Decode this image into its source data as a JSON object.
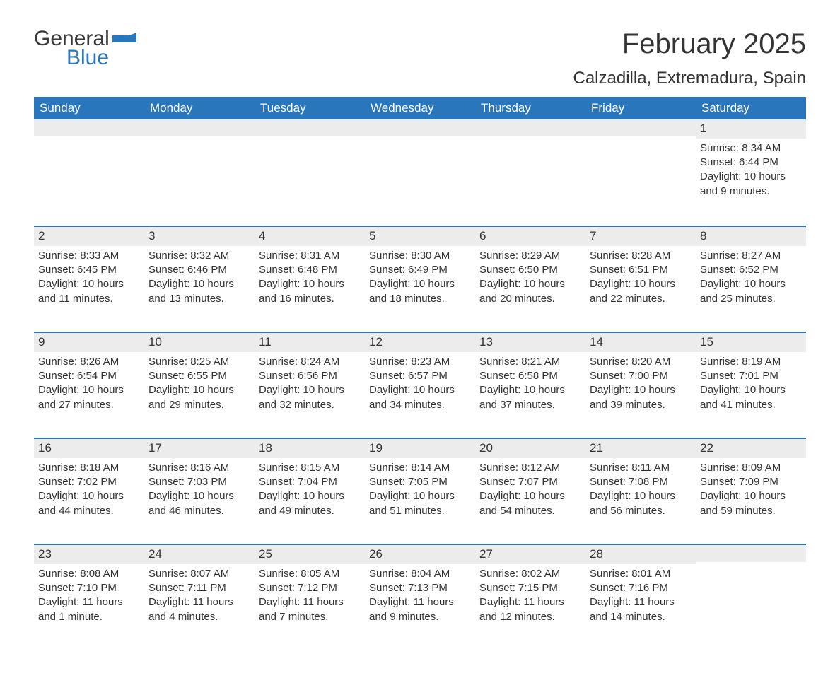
{
  "brand": {
    "word1": "General",
    "word2": "Blue",
    "color_primary": "#2a76bd",
    "color_text": "#3a3a3a"
  },
  "title": "February 2025",
  "location": "Calzadilla, Extremadura, Spain",
  "header_bg": "#2a76bd",
  "header_fg": "#ffffff",
  "daynum_bg": "#ececec",
  "week_border": "#2a76bd",
  "weekdays": [
    "Sunday",
    "Monday",
    "Tuesday",
    "Wednesday",
    "Thursday",
    "Friday",
    "Saturday"
  ],
  "weeks": [
    [
      null,
      null,
      null,
      null,
      null,
      null,
      {
        "n": "1",
        "sunrise": "Sunrise: 8:34 AM",
        "sunset": "Sunset: 6:44 PM",
        "daylight": "Daylight: 10 hours and 9 minutes."
      }
    ],
    [
      {
        "n": "2",
        "sunrise": "Sunrise: 8:33 AM",
        "sunset": "Sunset: 6:45 PM",
        "daylight": "Daylight: 10 hours and 11 minutes."
      },
      {
        "n": "3",
        "sunrise": "Sunrise: 8:32 AM",
        "sunset": "Sunset: 6:46 PM",
        "daylight": "Daylight: 10 hours and 13 minutes."
      },
      {
        "n": "4",
        "sunrise": "Sunrise: 8:31 AM",
        "sunset": "Sunset: 6:48 PM",
        "daylight": "Daylight: 10 hours and 16 minutes."
      },
      {
        "n": "5",
        "sunrise": "Sunrise: 8:30 AM",
        "sunset": "Sunset: 6:49 PM",
        "daylight": "Daylight: 10 hours and 18 minutes."
      },
      {
        "n": "6",
        "sunrise": "Sunrise: 8:29 AM",
        "sunset": "Sunset: 6:50 PM",
        "daylight": "Daylight: 10 hours and 20 minutes."
      },
      {
        "n": "7",
        "sunrise": "Sunrise: 8:28 AM",
        "sunset": "Sunset: 6:51 PM",
        "daylight": "Daylight: 10 hours and 22 minutes."
      },
      {
        "n": "8",
        "sunrise": "Sunrise: 8:27 AM",
        "sunset": "Sunset: 6:52 PM",
        "daylight": "Daylight: 10 hours and 25 minutes."
      }
    ],
    [
      {
        "n": "9",
        "sunrise": "Sunrise: 8:26 AM",
        "sunset": "Sunset: 6:54 PM",
        "daylight": "Daylight: 10 hours and 27 minutes."
      },
      {
        "n": "10",
        "sunrise": "Sunrise: 8:25 AM",
        "sunset": "Sunset: 6:55 PM",
        "daylight": "Daylight: 10 hours and 29 minutes."
      },
      {
        "n": "11",
        "sunrise": "Sunrise: 8:24 AM",
        "sunset": "Sunset: 6:56 PM",
        "daylight": "Daylight: 10 hours and 32 minutes."
      },
      {
        "n": "12",
        "sunrise": "Sunrise: 8:23 AM",
        "sunset": "Sunset: 6:57 PM",
        "daylight": "Daylight: 10 hours and 34 minutes."
      },
      {
        "n": "13",
        "sunrise": "Sunrise: 8:21 AM",
        "sunset": "Sunset: 6:58 PM",
        "daylight": "Daylight: 10 hours and 37 minutes."
      },
      {
        "n": "14",
        "sunrise": "Sunrise: 8:20 AM",
        "sunset": "Sunset: 7:00 PM",
        "daylight": "Daylight: 10 hours and 39 minutes."
      },
      {
        "n": "15",
        "sunrise": "Sunrise: 8:19 AM",
        "sunset": "Sunset: 7:01 PM",
        "daylight": "Daylight: 10 hours and 41 minutes."
      }
    ],
    [
      {
        "n": "16",
        "sunrise": "Sunrise: 8:18 AM",
        "sunset": "Sunset: 7:02 PM",
        "daylight": "Daylight: 10 hours and 44 minutes."
      },
      {
        "n": "17",
        "sunrise": "Sunrise: 8:16 AM",
        "sunset": "Sunset: 7:03 PM",
        "daylight": "Daylight: 10 hours and 46 minutes."
      },
      {
        "n": "18",
        "sunrise": "Sunrise: 8:15 AM",
        "sunset": "Sunset: 7:04 PM",
        "daylight": "Daylight: 10 hours and 49 minutes."
      },
      {
        "n": "19",
        "sunrise": "Sunrise: 8:14 AM",
        "sunset": "Sunset: 7:05 PM",
        "daylight": "Daylight: 10 hours and 51 minutes."
      },
      {
        "n": "20",
        "sunrise": "Sunrise: 8:12 AM",
        "sunset": "Sunset: 7:07 PM",
        "daylight": "Daylight: 10 hours and 54 minutes."
      },
      {
        "n": "21",
        "sunrise": "Sunrise: 8:11 AM",
        "sunset": "Sunset: 7:08 PM",
        "daylight": "Daylight: 10 hours and 56 minutes."
      },
      {
        "n": "22",
        "sunrise": "Sunrise: 8:09 AM",
        "sunset": "Sunset: 7:09 PM",
        "daylight": "Daylight: 10 hours and 59 minutes."
      }
    ],
    [
      {
        "n": "23",
        "sunrise": "Sunrise: 8:08 AM",
        "sunset": "Sunset: 7:10 PM",
        "daylight": "Daylight: 11 hours and 1 minute."
      },
      {
        "n": "24",
        "sunrise": "Sunrise: 8:07 AM",
        "sunset": "Sunset: 7:11 PM",
        "daylight": "Daylight: 11 hours and 4 minutes."
      },
      {
        "n": "25",
        "sunrise": "Sunrise: 8:05 AM",
        "sunset": "Sunset: 7:12 PM",
        "daylight": "Daylight: 11 hours and 7 minutes."
      },
      {
        "n": "26",
        "sunrise": "Sunrise: 8:04 AM",
        "sunset": "Sunset: 7:13 PM",
        "daylight": "Daylight: 11 hours and 9 minutes."
      },
      {
        "n": "27",
        "sunrise": "Sunrise: 8:02 AM",
        "sunset": "Sunset: 7:15 PM",
        "daylight": "Daylight: 11 hours and 12 minutes."
      },
      {
        "n": "28",
        "sunrise": "Sunrise: 8:01 AM",
        "sunset": "Sunset: 7:16 PM",
        "daylight": "Daylight: 11 hours and 14 minutes."
      },
      null
    ]
  ]
}
